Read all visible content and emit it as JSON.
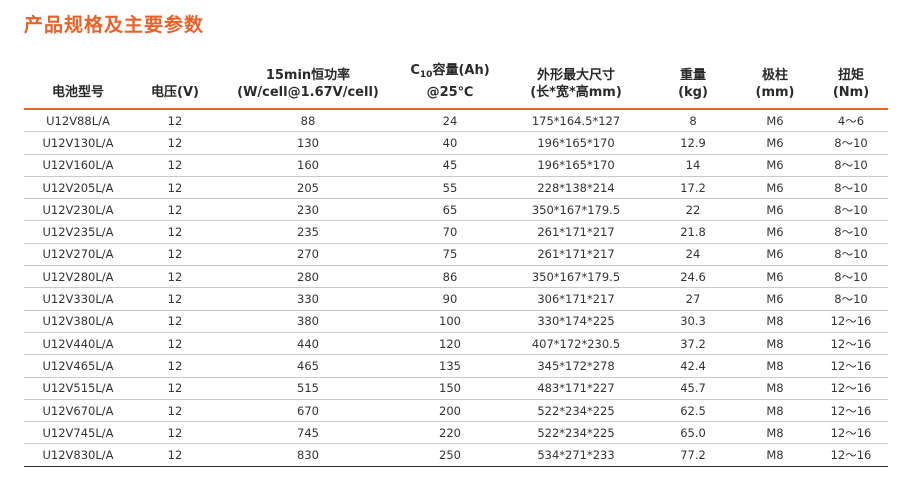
{
  "title": "产品规格及主要参数",
  "headers": {
    "model": "电池型号",
    "voltage": "电压(V)",
    "power_line1": "15min恒功率",
    "power_line2": "(W/cell@1.67V/cell)",
    "cap_prefix": "C",
    "cap_sub": "10",
    "cap_suffix": "容量(Ah)",
    "cap_line2": "@25℃",
    "dim_line1": "外形最大尺寸",
    "dim_line2": "(长*宽*高mm)",
    "weight_line1": "重量",
    "weight_line2": "(kg)",
    "terminal_line1": "极柱",
    "terminal_line2": "(mm)",
    "torque_line1": "扭矩",
    "torque_line2": "(Nm)"
  },
  "rows": [
    {
      "model": "U12V88L/A",
      "voltage": "12",
      "power": "88",
      "capacity": "24",
      "dimensions": "175*164.5*127",
      "weight": "8",
      "terminal": "M6",
      "torque": "4～6"
    },
    {
      "model": "U12V130L/A",
      "voltage": "12",
      "power": "130",
      "capacity": "40",
      "dimensions": "196*165*170",
      "weight": "12.9",
      "terminal": "M6",
      "torque": "8～10"
    },
    {
      "model": "U12V160L/A",
      "voltage": "12",
      "power": "160",
      "capacity": "45",
      "dimensions": "196*165*170",
      "weight": "14",
      "terminal": "M6",
      "torque": "8～10"
    },
    {
      "model": "U12V205L/A",
      "voltage": "12",
      "power": "205",
      "capacity": "55",
      "dimensions": "228*138*214",
      "weight": "17.2",
      "terminal": "M6",
      "torque": "8～10"
    },
    {
      "model": "U12V230L/A",
      "voltage": "12",
      "power": "230",
      "capacity": "65",
      "dimensions": "350*167*179.5",
      "weight": "22",
      "terminal": "M6",
      "torque": "8～10"
    },
    {
      "model": "U12V235L/A",
      "voltage": "12",
      "power": "235",
      "capacity": "70",
      "dimensions": "261*171*217",
      "weight": "21.8",
      "terminal": "M6",
      "torque": "8～10"
    },
    {
      "model": "U12V270L/A",
      "voltage": "12",
      "power": "270",
      "capacity": "75",
      "dimensions": "261*171*217",
      "weight": "24",
      "terminal": "M6",
      "torque": "8～10"
    },
    {
      "model": "U12V280L/A",
      "voltage": "12",
      "power": "280",
      "capacity": "86",
      "dimensions": "350*167*179.5",
      "weight": "24.6",
      "terminal": "M6",
      "torque": "8～10"
    },
    {
      "model": "U12V330L/A",
      "voltage": "12",
      "power": "330",
      "capacity": "90",
      "dimensions": "306*171*217",
      "weight": "27",
      "terminal": "M6",
      "torque": "8～10"
    },
    {
      "model": "U12V380L/A",
      "voltage": "12",
      "power": "380",
      "capacity": "100",
      "dimensions": "330*174*225",
      "weight": "30.3",
      "terminal": "M8",
      "torque": "12～16"
    },
    {
      "model": "U12V440L/A",
      "voltage": "12",
      "power": "440",
      "capacity": "120",
      "dimensions": "407*172*230.5",
      "weight": "37.2",
      "terminal": "M8",
      "torque": "12～16"
    },
    {
      "model": "U12V465L/A",
      "voltage": "12",
      "power": "465",
      "capacity": "135",
      "dimensions": "345*172*278",
      "weight": "42.4",
      "terminal": "M8",
      "torque": "12～16"
    },
    {
      "model": "U12V515L/A",
      "voltage": "12",
      "power": "515",
      "capacity": "150",
      "dimensions": "483*171*227",
      "weight": "45.7",
      "terminal": "M8",
      "torque": "12～16"
    },
    {
      "model": "U12V670L/A",
      "voltage": "12",
      "power": "670",
      "capacity": "200",
      "dimensions": "522*234*225",
      "weight": "62.5",
      "terminal": "M8",
      "torque": "12～16"
    },
    {
      "model": "U12V745L/A",
      "voltage": "12",
      "power": "745",
      "capacity": "220",
      "dimensions": "522*234*225",
      "weight": "65.0",
      "terminal": "M8",
      "torque": "12～16"
    },
    {
      "model": "U12V830L/A",
      "voltage": "12",
      "power": "830",
      "capacity": "250",
      "dimensions": "534*271*233",
      "weight": "77.2",
      "terminal": "M8",
      "torque": "12～16"
    }
  ],
  "colors": {
    "accent": "#e8622a",
    "text": "#2a2a2a",
    "rule": "#c9c9c9"
  }
}
